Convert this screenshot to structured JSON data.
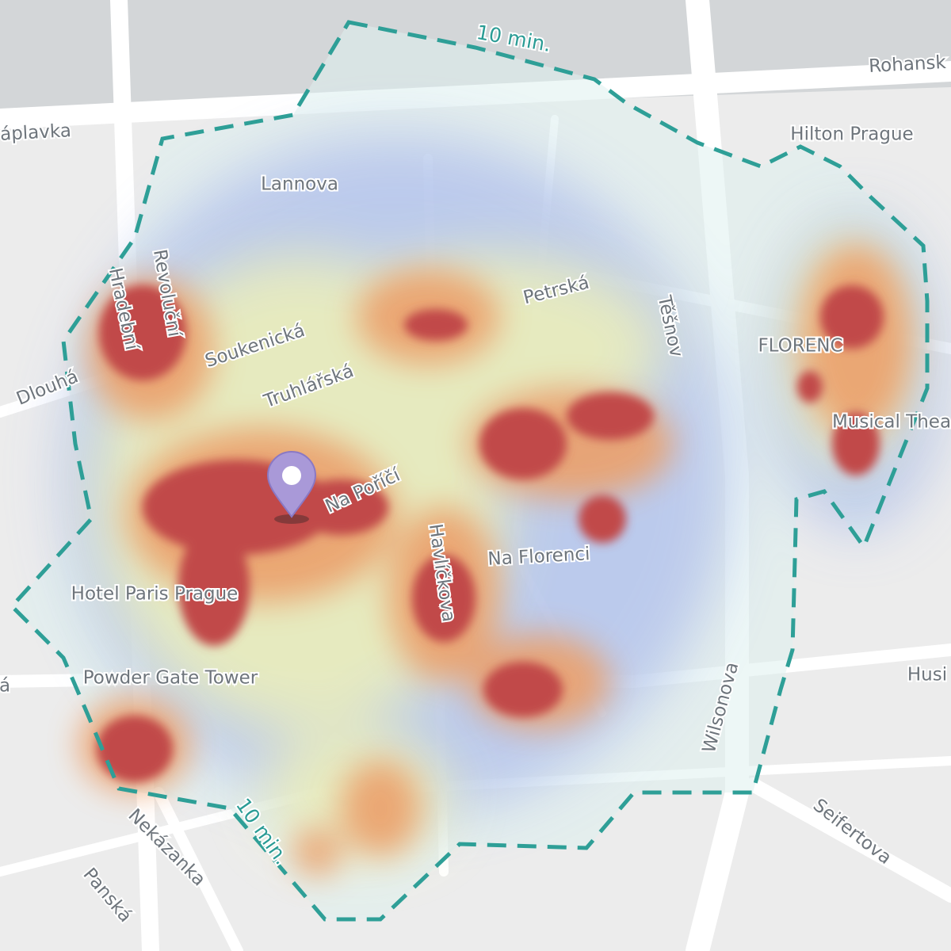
{
  "map": {
    "isochrone_labels": [
      "10 min.",
      "10 min."
    ],
    "labels": [
      "Rohansk",
      "Hilton Prague",
      "áplavka",
      "Lannova",
      "Revoluční",
      "Hradební",
      "Soukenická",
      "Truhlářská",
      "Petrská",
      "Těšnov",
      "FLORENC",
      "Dlouhá",
      "Na Poříčí",
      "Na Florenci",
      "Havlíčkova",
      "Musical Thea",
      "Hotel Paris Prague",
      "Powder Gate Tower",
      "Wilsonova",
      "Husi",
      "Seifertova",
      "Nekázanka",
      "Panská",
      "á"
    ]
  }
}
